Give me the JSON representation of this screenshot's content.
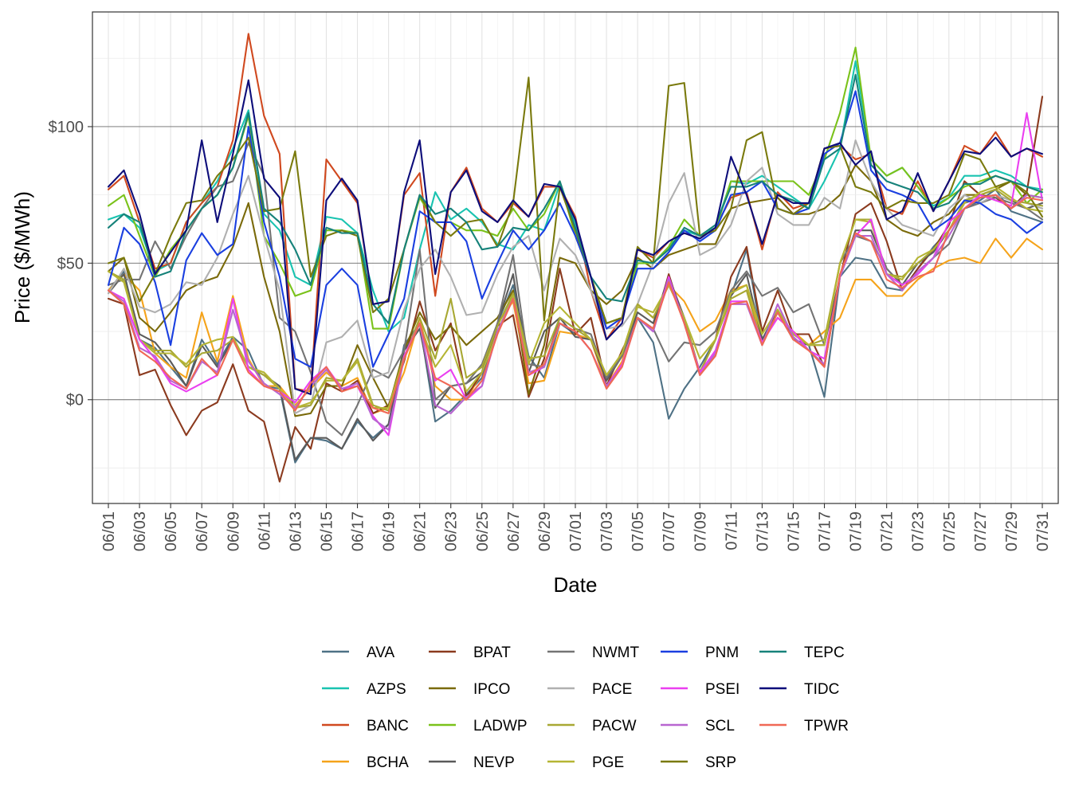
{
  "chart_data": {
    "type": "line",
    "title": "",
    "xlabel": "Date",
    "ylabel": "Price ($/MWh)",
    "ylim": [
      -38,
      142
    ],
    "y_ticks": [
      {
        "value": 0,
        "label": "$0"
      },
      {
        "value": 50,
        "label": "$50"
      },
      {
        "value": 100,
        "label": "$100"
      }
    ],
    "x_tick_labels": [
      "06/01",
      "06/03",
      "06/05",
      "06/07",
      "06/09",
      "06/11",
      "06/13",
      "06/15",
      "06/17",
      "06/19",
      "06/21",
      "06/23",
      "06/25",
      "06/27",
      "06/29",
      "07/01",
      "07/03",
      "07/05",
      "07/07",
      "07/09",
      "07/11",
      "07/13",
      "07/15",
      "07/17",
      "07/19",
      "07/21",
      "07/23",
      "07/25",
      "07/27",
      "07/29",
      "07/31"
    ],
    "x_tick_every": 2,
    "x": [
      "06/01",
      "06/02",
      "06/03",
      "06/04",
      "06/05",
      "06/06",
      "06/07",
      "06/08",
      "06/09",
      "06/10",
      "06/11",
      "06/12",
      "06/13",
      "06/14",
      "06/15",
      "06/16",
      "06/17",
      "06/18",
      "06/19",
      "06/20",
      "06/21",
      "06/22",
      "06/23",
      "06/24",
      "06/25",
      "06/26",
      "06/27",
      "06/28",
      "06/29",
      "06/30",
      "07/01",
      "07/02",
      "07/03",
      "07/04",
      "07/05",
      "07/06",
      "07/07",
      "07/08",
      "07/09",
      "07/10",
      "07/11",
      "07/12",
      "07/13",
      "07/14",
      "07/15",
      "07/16",
      "07/17",
      "07/18",
      "07/19",
      "07/20",
      "07/21",
      "07/22",
      "07/23",
      "07/24",
      "07/25",
      "07/26",
      "07/27",
      "07/28",
      "07/29",
      "07/30",
      "07/31"
    ],
    "legend_position": "bottom",
    "series": [
      {
        "name": "AVA",
        "color": "#4e7185",
        "values": [
          40,
          47,
          22,
          19,
          12,
          5,
          22,
          13,
          23,
          18,
          5,
          4,
          -23,
          -14,
          -15,
          -18,
          -8,
          -14,
          -9,
          20,
          28,
          -8,
          -4,
          2,
          8,
          28,
          42,
          16,
          8,
          28,
          24,
          22,
          8,
          16,
          30,
          21,
          -7,
          4,
          12,
          22,
          38,
          55,
          22,
          32,
          22,
          20,
          1,
          45,
          52,
          51,
          41,
          40,
          48,
          56,
          62,
          70,
          73,
          77,
          69,
          67,
          65
        ]
      },
      {
        "name": "AZPS",
        "color": "#19c3b0",
        "values": [
          66,
          68,
          63,
          47,
          50,
          65,
          72,
          80,
          92,
          106,
          68,
          62,
          45,
          42,
          67,
          66,
          61,
          40,
          25,
          30,
          55,
          76,
          66,
          70,
          65,
          57,
          55,
          64,
          62,
          79,
          65,
          45,
          28,
          30,
          50,
          50,
          56,
          62,
          60,
          63,
          80,
          79,
          82,
          78,
          74,
          70,
          80,
          92,
          124,
          88,
          82,
          85,
          78,
          71,
          74,
          82,
          82,
          84,
          82,
          78,
          77
        ]
      },
      {
        "name": "BANC",
        "color": "#d0491f",
        "values": [
          77,
          82,
          65,
          48,
          50,
          65,
          72,
          78,
          95,
          134,
          104,
          90,
          4,
          3,
          88,
          80,
          72,
          35,
          36,
          75,
          83,
          38,
          76,
          85,
          70,
          65,
          72,
          67,
          78,
          78,
          67,
          40,
          22,
          30,
          55,
          52,
          58,
          61,
          59,
          63,
          74,
          76,
          55,
          76,
          70,
          72,
          92,
          93,
          88,
          90,
          70,
          68,
          80,
          69,
          80,
          93,
          90,
          98,
          89,
          92,
          89
        ]
      },
      {
        "name": "BCHA",
        "color": "#f5a31a",
        "values": [
          40,
          46,
          40,
          17,
          12,
          8,
          32,
          14,
          38,
          15,
          5,
          5,
          -2,
          4,
          10,
          5,
          8,
          -5,
          -3,
          10,
          30,
          5,
          0,
          0,
          10,
          28,
          36,
          6,
          7,
          25,
          24,
          22,
          5,
          14,
          35,
          30,
          42,
          36,
          25,
          29,
          40,
          42,
          22,
          30,
          25,
          20,
          25,
          30,
          44,
          44,
          38,
          38,
          44,
          48,
          51,
          52,
          50,
          59,
          52,
          59,
          55
        ]
      },
      {
        "name": "BPAT",
        "color": "#8b3a1e",
        "values": [
          37,
          35,
          9,
          11,
          -2,
          -13,
          -4,
          -1,
          13,
          -4,
          -8,
          -30,
          -10,
          -18,
          6,
          3,
          7,
          -5,
          -2,
          14,
          36,
          18,
          28,
          1,
          10,
          27,
          31,
          1,
          15,
          48,
          24,
          30,
          5,
          18,
          30,
          26,
          46,
          28,
          10,
          22,
          45,
          56,
          25,
          40,
          24,
          24,
          12,
          45,
          68,
          72,
          58,
          40,
          48,
          55,
          64,
          80,
          75,
          74,
          70,
          76,
          111
        ]
      },
      {
        "name": "IPCO",
        "color": "#7a6a0a",
        "values": [
          47,
          52,
          30,
          25,
          32,
          40,
          43,
          45,
          56,
          72,
          45,
          25,
          -6,
          -5,
          5,
          5,
          20,
          8,
          -3,
          18,
          32,
          22,
          27,
          20,
          25,
          30,
          40,
          2,
          20,
          52,
          50,
          40,
          35,
          40,
          52,
          48,
          53,
          55,
          57,
          57,
          70,
          72,
          73,
          74,
          68,
          68,
          70,
          75,
          86,
          80,
          66,
          62,
          60,
          65,
          68,
          75,
          75,
          77,
          80,
          75,
          74
        ]
      },
      {
        "name": "LADWP",
        "color": "#7ac21a",
        "values": [
          71,
          75,
          60,
          45,
          55,
          62,
          70,
          75,
          85,
          104,
          60,
          50,
          38,
          40,
          62,
          62,
          61,
          26,
          26,
          55,
          74,
          65,
          65,
          62,
          62,
          60,
          70,
          62,
          68,
          80,
          60,
          45,
          28,
          30,
          50,
          50,
          56,
          66,
          60,
          62,
          80,
          80,
          80,
          80,
          80,
          75,
          88,
          105,
          129,
          88,
          82,
          85,
          78,
          70,
          74,
          78,
          80,
          82,
          80,
          72,
          77
        ]
      },
      {
        "name": "NEVP",
        "color": "#5a5a5a",
        "values": [
          39,
          46,
          24,
          21,
          14,
          5,
          20,
          12,
          22,
          12,
          9,
          5,
          -22,
          -14,
          -14,
          -18,
          -7,
          -15,
          -9,
          18,
          26,
          -3,
          5,
          6,
          10,
          28,
          46,
          10,
          25,
          30,
          23,
          22,
          7,
          16,
          32,
          28,
          45,
          30,
          10,
          22,
          38,
          46,
          22,
          33,
          22,
          20,
          20,
          45,
          62,
          62,
          48,
          42,
          50,
          54,
          62,
          72,
          74,
          75,
          73,
          70,
          72
        ]
      },
      {
        "name": "NWMT",
        "color": "#747474",
        "values": [
          42,
          44,
          44,
          58,
          48,
          60,
          70,
          78,
          80,
          94,
          82,
          30,
          25,
          10,
          -8,
          -13,
          -2,
          11,
          8,
          18,
          55,
          0,
          5,
          6,
          13,
          28,
          53,
          13,
          12,
          30,
          26,
          24,
          8,
          16,
          30,
          26,
          14,
          21,
          20,
          25,
          40,
          47,
          38,
          41,
          32,
          35,
          20,
          50,
          60,
          58,
          48,
          42,
          46,
          52,
          57,
          70,
          72,
          74,
          72,
          70,
          66
        ]
      },
      {
        "name": "PACE",
        "color": "#b0b0b0",
        "values": [
          39,
          48,
          34,
          32,
          35,
          43,
          42,
          52,
          68,
          82,
          60,
          40,
          -5,
          -2,
          21,
          23,
          29,
          8,
          10,
          33,
          48,
          55,
          45,
          31,
          32,
          46,
          56,
          60,
          40,
          59,
          53,
          40,
          26,
          27,
          35,
          50,
          72,
          83,
          53,
          56,
          64,
          80,
          85,
          68,
          64,
          64,
          74,
          70,
          95,
          80,
          70,
          64,
          62,
          60,
          70,
          75,
          72,
          75,
          73,
          72,
          70
        ]
      },
      {
        "name": "PACW",
        "color": "#a8a833",
        "values": [
          47,
          44,
          22,
          18,
          18,
          12,
          17,
          18,
          22,
          12,
          9,
          4,
          -3,
          -2,
          8,
          7,
          15,
          -2,
          -4,
          15,
          30,
          15,
          37,
          8,
          12,
          27,
          39,
          15,
          16,
          30,
          26,
          22,
          9,
          17,
          35,
          30,
          42,
          30,
          10,
          22,
          37,
          40,
          20,
          32,
          24,
          20,
          22,
          50,
          66,
          66,
          46,
          45,
          50,
          55,
          62,
          73,
          75,
          77,
          73,
          72,
          71
        ]
      },
      {
        "name": "PGE",
        "color": "#b5b534",
        "values": [
          47,
          43,
          22,
          17,
          17,
          13,
          20,
          22,
          23,
          12,
          10,
          4,
          -3,
          -1,
          7,
          7,
          14,
          -3,
          -3,
          16,
          28,
          12,
          20,
          3,
          10,
          25,
          38,
          13,
          28,
          34,
          28,
          22,
          9,
          17,
          34,
          32,
          42,
          30,
          15,
          22,
          39,
          42,
          24,
          33,
          24,
          20,
          20,
          50,
          66,
          65,
          46,
          44,
          52,
          55,
          62,
          72,
          76,
          78,
          74,
          70,
          69
        ]
      },
      {
        "name": "PNM",
        "color": "#1a3fe0",
        "values": [
          42,
          63,
          57,
          43,
          20,
          51,
          61,
          53,
          57,
          100,
          65,
          45,
          15,
          12,
          42,
          48,
          42,
          12,
          24,
          37,
          69,
          65,
          65,
          58,
          37,
          50,
          62,
          55,
          62,
          72,
          60,
          45,
          26,
          30,
          48,
          48,
          54,
          62,
          58,
          62,
          75,
          76,
          80,
          70,
          68,
          70,
          90,
          94,
          113,
          84,
          77,
          75,
          72,
          62,
          66,
          73,
          72,
          68,
          66,
          61,
          65
        ]
      },
      {
        "name": "PSEI",
        "color": "#ea3ff0",
        "values": [
          40,
          37,
          22,
          15,
          6,
          3,
          6,
          9,
          37,
          11,
          5,
          3,
          -1,
          7,
          12,
          4,
          5,
          -6,
          -13,
          16,
          28,
          7,
          11,
          0,
          5,
          25,
          37,
          9,
          12,
          28,
          25,
          18,
          5,
          13,
          30,
          25,
          45,
          28,
          10,
          18,
          36,
          36,
          21,
          30,
          25,
          18,
          15,
          45,
          60,
          66,
          46,
          42,
          46,
          52,
          65,
          70,
          75,
          73,
          71,
          105,
          73
        ]
      },
      {
        "name": "SCL",
        "color": "#b865d0",
        "values": [
          40,
          36,
          19,
          16,
          7,
          4,
          14,
          10,
          33,
          14,
          6,
          2,
          -3,
          5,
          11,
          4,
          6,
          -7,
          -11,
          15,
          28,
          -2,
          -5,
          1,
          5,
          25,
          37,
          10,
          12,
          28,
          25,
          18,
          5,
          12,
          30,
          25,
          44,
          28,
          9,
          17,
          35,
          35,
          20,
          35,
          23,
          18,
          13,
          45,
          60,
          60,
          46,
          40,
          47,
          52,
          60,
          70,
          74,
          75,
          70,
          75,
          74
        ]
      },
      {
        "name": "SRP",
        "color": "#7a7a0d",
        "values": [
          50,
          52,
          36,
          46,
          60,
          72,
          73,
          82,
          88,
          96,
          69,
          70,
          91,
          45,
          60,
          62,
          60,
          32,
          37,
          55,
          75,
          65,
          60,
          65,
          66,
          56,
          72,
          118,
          29,
          78,
          62,
          45,
          28,
          30,
          56,
          50,
          115,
          116,
          60,
          62,
          70,
          95,
          98,
          70,
          68,
          72,
          92,
          93,
          78,
          76,
          70,
          73,
          72,
          72,
          75,
          90,
          88,
          78,
          80,
          76,
          67
        ]
      },
      {
        "name": "TEPC",
        "color": "#16827a",
        "values": [
          63,
          68,
          65,
          45,
          47,
          62,
          70,
          75,
          85,
          105,
          70,
          65,
          55,
          42,
          63,
          61,
          61,
          35,
          28,
          55,
          75,
          68,
          70,
          65,
          55,
          56,
          63,
          62,
          70,
          80,
          63,
          45,
          37,
          36,
          51,
          50,
          55,
          63,
          60,
          64,
          78,
          78,
          80,
          75,
          73,
          70,
          88,
          92,
          119,
          86,
          80,
          78,
          76,
          70,
          72,
          79,
          79,
          82,
          80,
          78,
          76
        ]
      },
      {
        "name": "TIDC",
        "color": "#0d0d7a",
        "values": [
          78,
          84,
          68,
          46,
          54,
          62,
          95,
          65,
          90,
          117,
          81,
          74,
          4,
          2,
          73,
          81,
          73,
          35,
          36,
          76,
          95,
          46,
          76,
          84,
          69,
          65,
          73,
          67,
          79,
          78,
          66,
          45,
          22,
          28,
          55,
          53,
          58,
          61,
          59,
          63,
          89,
          75,
          57,
          75,
          72,
          72,
          92,
          94,
          86,
          91,
          66,
          69,
          83,
          69,
          80,
          91,
          90,
          96,
          89,
          92,
          90
        ]
      },
      {
        "name": "TPWR",
        "color": "#f06855",
        "values": [
          40,
          35,
          18,
          14,
          8,
          4,
          15,
          9,
          22,
          10,
          5,
          3,
          -4,
          6,
          12,
          3,
          5,
          -3,
          -5,
          15,
          28,
          8,
          5,
          0,
          7,
          24,
          37,
          9,
          13,
          28,
          25,
          18,
          4,
          12,
          30,
          26,
          43,
          28,
          9,
          16,
          35,
          36,
          20,
          32,
          22,
          18,
          12,
          46,
          61,
          58,
          44,
          41,
          45,
          47,
          62,
          70,
          74,
          75,
          70,
          74,
          73
        ]
      }
    ]
  }
}
